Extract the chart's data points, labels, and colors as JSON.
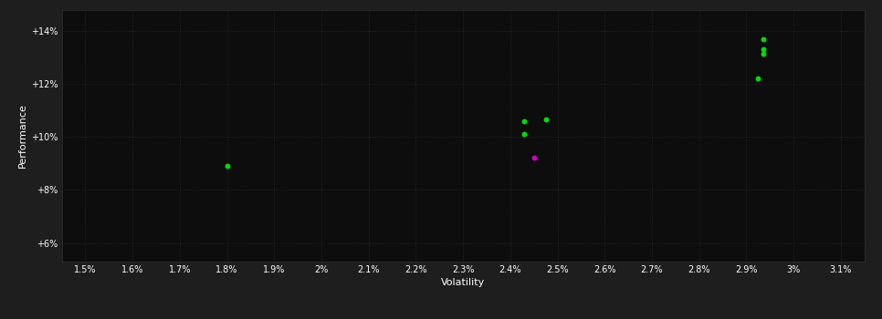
{
  "xlabel": "Volatility",
  "ylabel": "Performance",
  "background_color": "#1e1e1e",
  "plot_background_color": "#0d0d0d",
  "text_color": "#ffffff",
  "x_ticks": [
    1.5,
    1.6,
    1.7,
    1.8,
    1.9,
    2.0,
    2.1,
    2.2,
    2.3,
    2.4,
    2.5,
    2.6,
    2.7,
    2.8,
    2.9,
    3.0,
    3.1
  ],
  "x_tick_labels": [
    "1.5%",
    "1.6%",
    "1.7%",
    "1.8%",
    "1.9%",
    "2%",
    "2.1%",
    "2.2%",
    "2.3%",
    "2.4%",
    "2.5%",
    "2.6%",
    "2.7%",
    "2.8%",
    "2.9%",
    "3%",
    "3.1%"
  ],
  "y_ticks": [
    6.0,
    8.0,
    10.0,
    12.0,
    14.0
  ],
  "y_tick_labels": [
    "+6%",
    "+8%",
    "+10%",
    "+12%",
    "+14%"
  ],
  "xlim": [
    1.45,
    3.15
  ],
  "ylim": [
    5.3,
    14.8
  ],
  "green_points": [
    [
      1.8,
      8.9
    ],
    [
      2.43,
      10.6
    ],
    [
      2.475,
      10.65
    ],
    [
      2.43,
      10.1
    ],
    [
      2.935,
      13.7
    ],
    [
      2.935,
      13.3
    ],
    [
      2.935,
      13.15
    ],
    [
      2.925,
      12.2
    ]
  ],
  "magenta_points": [
    [
      2.45,
      9.2
    ]
  ],
  "green_color": "#00dd00",
  "magenta_color": "#cc00cc",
  "point_size": 18,
  "grid_color": "#333333",
  "grid_style": ":"
}
